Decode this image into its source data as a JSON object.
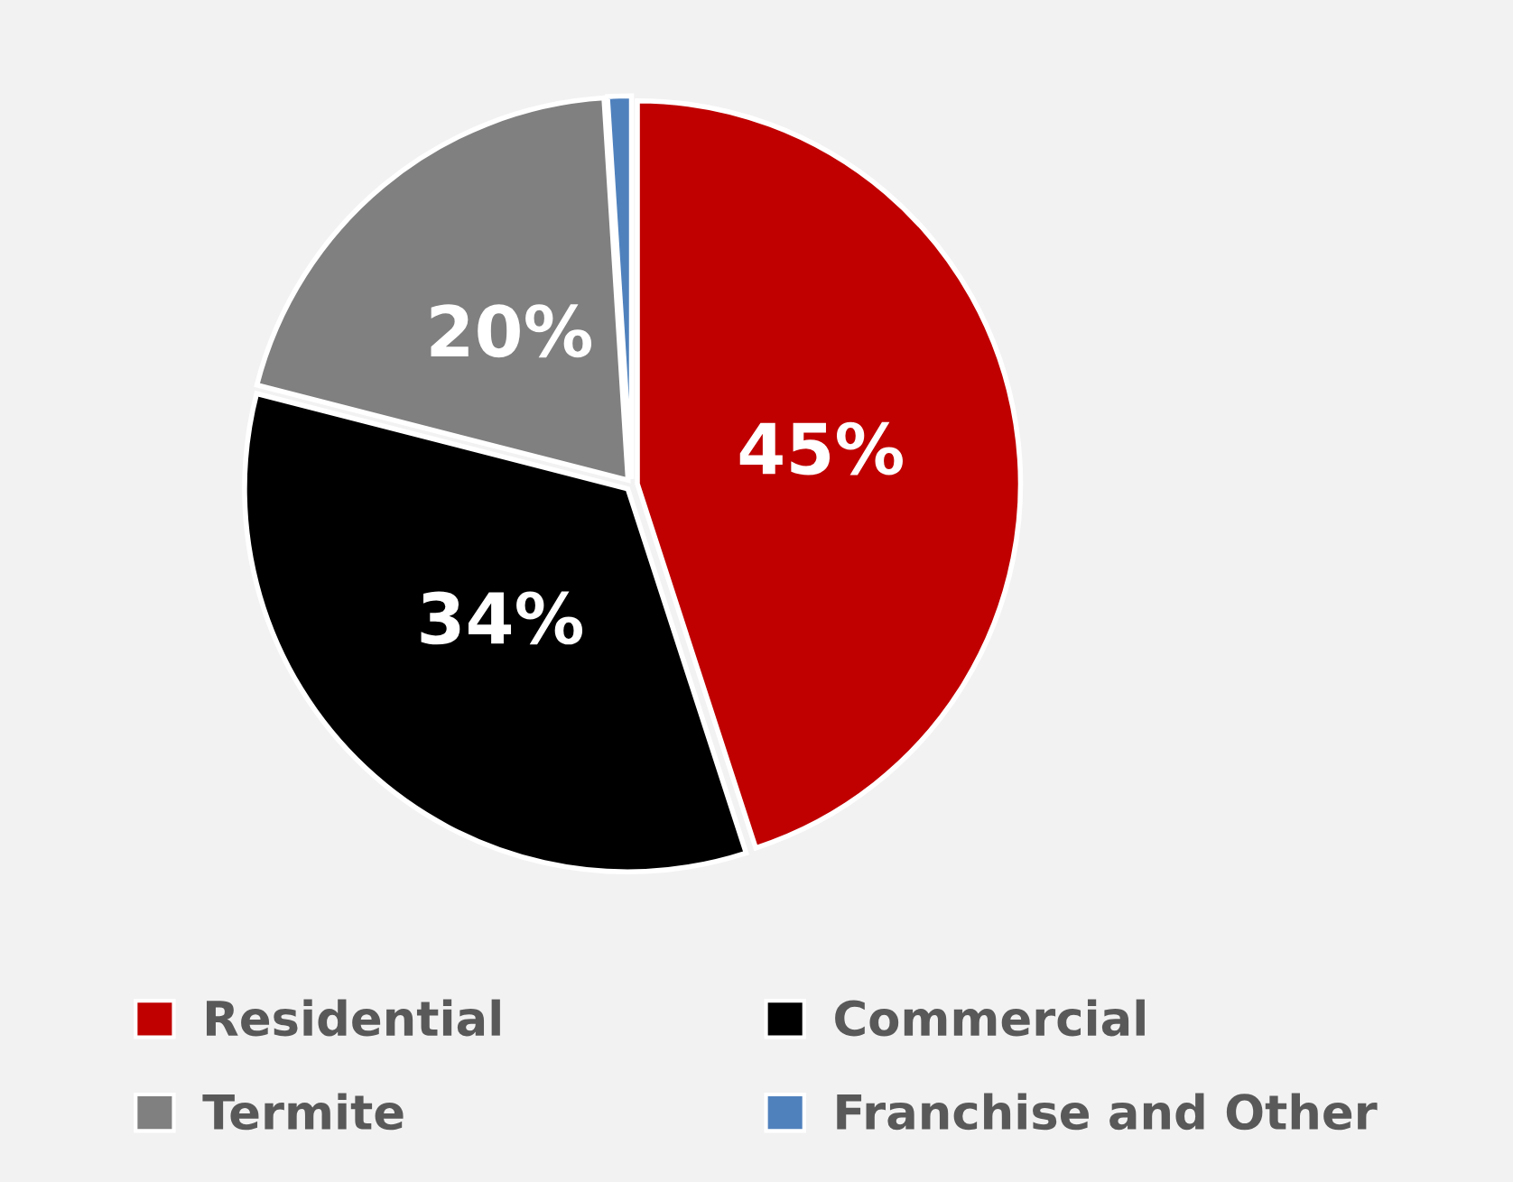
{
  "chart_data": {
    "type": "pie",
    "categories": [
      "Residential",
      "Commercial",
      "Termite",
      "Franchise and Other"
    ],
    "values": [
      45,
      34,
      20,
      1
    ],
    "colors": [
      "#c00000",
      "#000000",
      "#808080",
      "#4f81bd"
    ],
    "value_labels": [
      "45%",
      "34%",
      "20%",
      null
    ],
    "legend": "bottom"
  }
}
